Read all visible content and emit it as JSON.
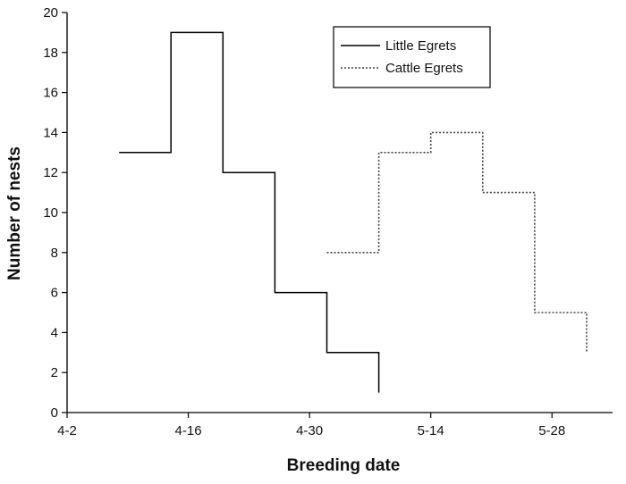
{
  "chart_data": {
    "type": "line",
    "step": true,
    "title": "",
    "xlabel": "Breeding date",
    "ylabel": "Number of nests",
    "x_ticks": [
      {
        "day": 0,
        "label": "4-2"
      },
      {
        "day": 14,
        "label": "4-16"
      },
      {
        "day": 28,
        "label": "4-30"
      },
      {
        "day": 42,
        "label": "5-14"
      },
      {
        "day": 56,
        "label": "5-28"
      }
    ],
    "xlim": [
      0,
      63
    ],
    "ylim": [
      0,
      20
    ],
    "y_ticks": [
      0,
      2,
      4,
      6,
      8,
      10,
      12,
      14,
      16,
      18,
      20
    ],
    "grid": false,
    "legend_position": "top-right",
    "series": [
      {
        "name": "Little Egrets",
        "style": "solid",
        "color": "#000000",
        "steps": [
          {
            "start": 6,
            "end": 12,
            "value": 13
          },
          {
            "start": 12,
            "end": 18,
            "value": 19
          },
          {
            "start": 18,
            "end": 24,
            "value": 12
          },
          {
            "start": 24,
            "end": 30,
            "value": 6
          },
          {
            "start": 30,
            "end": 36,
            "value": 3
          }
        ],
        "end_value": 1
      },
      {
        "name": "Cattle Egrets",
        "style": "dotted",
        "color": "#444444",
        "steps": [
          {
            "start": 30,
            "end": 36,
            "value": 8
          },
          {
            "start": 36,
            "end": 42,
            "value": 13
          },
          {
            "start": 42,
            "end": 48,
            "value": 14
          },
          {
            "start": 48,
            "end": 54,
            "value": 11
          },
          {
            "start": 54,
            "end": 60,
            "value": 5
          }
        ],
        "end_value": 3
      }
    ]
  }
}
